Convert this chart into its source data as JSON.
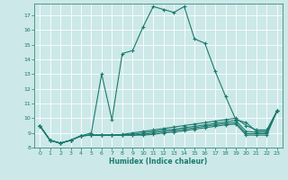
{
  "xlabel": "Humidex (Indice chaleur)",
  "bg_color": "#cce8e8",
  "grid_color": "#ffffff",
  "line_color": "#1a7a6e",
  "xlim": [
    -0.5,
    23.5
  ],
  "ylim": [
    8,
    17.8
  ],
  "yticks": [
    8,
    9,
    10,
    11,
    12,
    13,
    14,
    15,
    16,
    17
  ],
  "xticks": [
    0,
    1,
    2,
    3,
    4,
    5,
    6,
    7,
    8,
    9,
    10,
    11,
    12,
    13,
    14,
    15,
    16,
    17,
    18,
    19,
    20,
    21,
    22,
    23
  ],
  "line1_x": [
    0,
    1,
    2,
    3,
    4,
    5,
    6,
    7,
    8,
    9,
    10,
    11,
    12,
    13,
    14,
    15,
    16,
    17,
    18,
    19,
    20,
    21,
    22,
    23
  ],
  "line1_y": [
    9.5,
    8.5,
    8.3,
    8.5,
    8.8,
    9.0,
    13.0,
    9.9,
    14.4,
    14.6,
    16.2,
    17.6,
    17.4,
    17.2,
    17.6,
    15.4,
    15.1,
    13.2,
    11.5,
    9.9,
    9.7,
    9.1,
    9.1,
    10.5
  ],
  "line2_x": [
    0,
    1,
    2,
    3,
    4,
    5,
    6,
    7,
    8,
    9,
    10,
    11,
    12,
    13,
    14,
    15,
    16,
    17,
    18,
    19,
    20,
    21,
    22,
    23
  ],
  "line2_y": [
    9.5,
    8.5,
    8.3,
    8.5,
    8.8,
    8.85,
    8.85,
    8.85,
    8.9,
    9.0,
    9.1,
    9.2,
    9.3,
    9.4,
    9.5,
    9.6,
    9.7,
    9.8,
    9.9,
    10.0,
    9.5,
    9.2,
    9.2,
    10.5
  ],
  "line3_x": [
    0,
    1,
    2,
    3,
    4,
    5,
    6,
    7,
    8,
    9,
    10,
    11,
    12,
    13,
    14,
    15,
    16,
    17,
    18,
    19,
    20,
    21,
    22,
    23
  ],
  "line3_y": [
    9.5,
    8.5,
    8.3,
    8.5,
    8.8,
    8.85,
    8.85,
    8.85,
    8.85,
    8.9,
    9.0,
    9.1,
    9.2,
    9.25,
    9.35,
    9.45,
    9.55,
    9.65,
    9.75,
    9.85,
    9.1,
    9.05,
    9.05,
    10.5
  ],
  "line4_x": [
    0,
    1,
    2,
    3,
    4,
    5,
    6,
    7,
    8,
    9,
    10,
    11,
    12,
    13,
    14,
    15,
    16,
    17,
    18,
    19,
    20,
    21,
    22,
    23
  ],
  "line4_y": [
    9.5,
    8.5,
    8.3,
    8.5,
    8.8,
    8.85,
    8.85,
    8.85,
    8.85,
    8.85,
    8.9,
    9.0,
    9.1,
    9.15,
    9.25,
    9.35,
    9.45,
    9.55,
    9.65,
    9.7,
    8.95,
    8.95,
    8.95,
    10.5
  ],
  "line5_x": [
    0,
    1,
    2,
    3,
    4,
    5,
    6,
    7,
    8,
    9,
    10,
    11,
    12,
    13,
    14,
    15,
    16,
    17,
    18,
    19,
    20,
    21,
    22,
    23
  ],
  "line5_y": [
    9.5,
    8.5,
    8.3,
    8.5,
    8.8,
    8.85,
    8.85,
    8.85,
    8.85,
    8.85,
    8.85,
    8.9,
    9.0,
    9.05,
    9.15,
    9.25,
    9.35,
    9.45,
    9.55,
    9.6,
    8.85,
    8.85,
    8.85,
    10.5
  ]
}
